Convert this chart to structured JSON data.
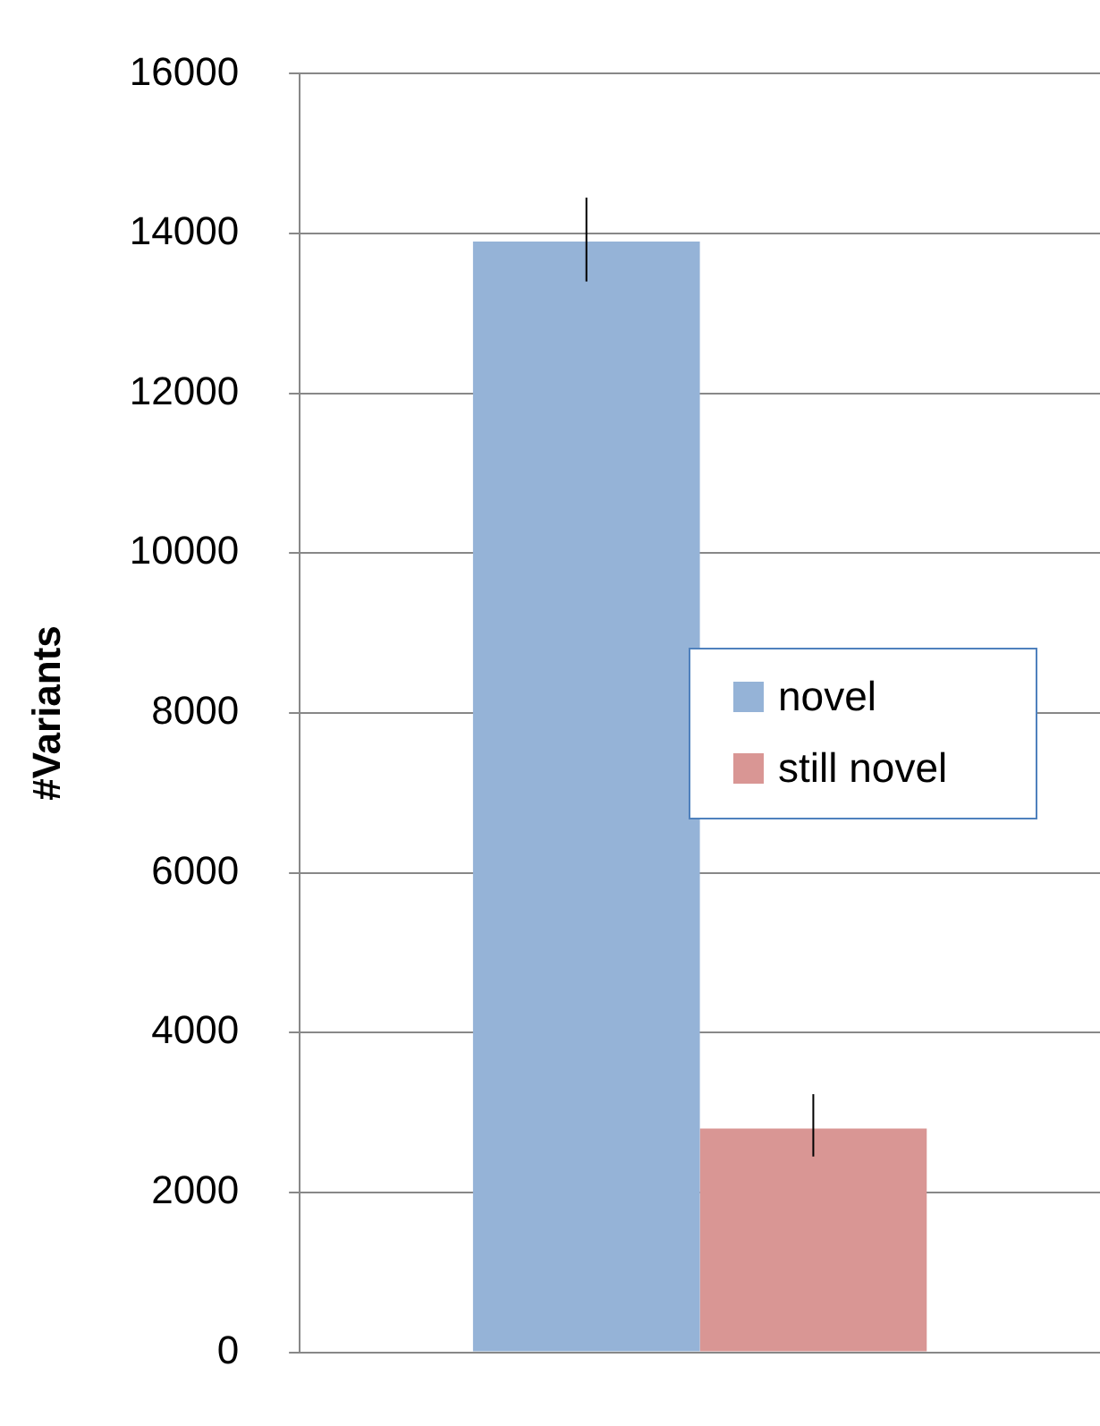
{
  "chart_data": {
    "type": "bar",
    "ylabel": "#Variants",
    "categories": [
      null
    ],
    "series": [
      {
        "name": "novel",
        "color": "#95b3d7",
        "values": [
          13900
        ],
        "errors": [
          [
            13400,
            14450
          ]
        ]
      },
      {
        "name": "still novel",
        "color": "#d99694",
        "values": [
          2800
        ],
        "errors": [
          [
            2450,
            3230
          ]
        ]
      }
    ],
    "ylim": [
      0,
      16000
    ],
    "yticks": [
      0,
      2000,
      4000,
      6000,
      8000,
      10000,
      12000,
      14000,
      16000
    ],
    "grid": "y",
    "legend": "right",
    "tick_labels": "y"
  }
}
